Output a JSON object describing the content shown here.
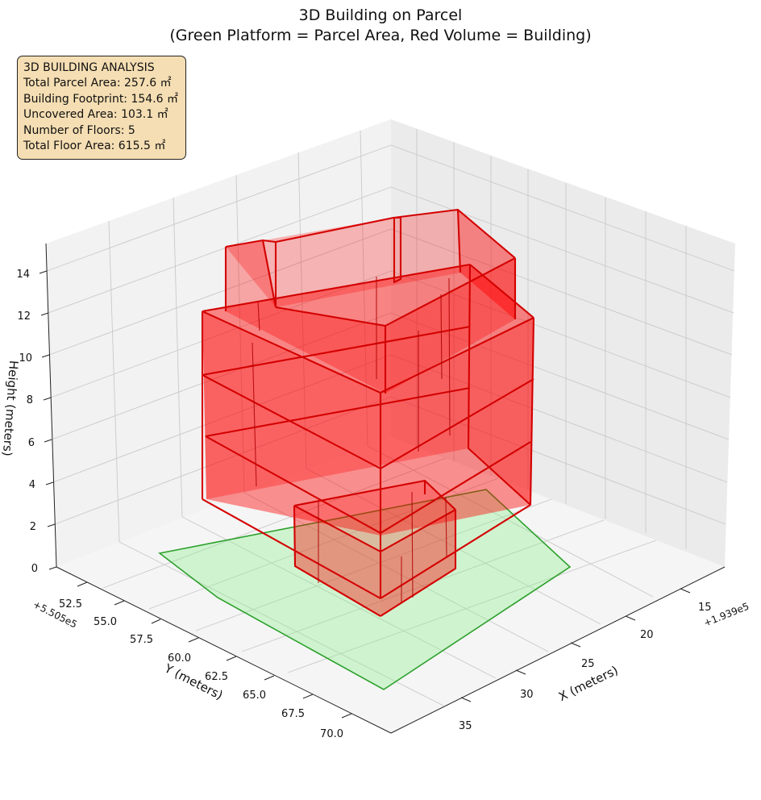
{
  "chart_data": {
    "type": "3d-polygon",
    "title": "3D Building on Parcel",
    "subtitle": "(Green Platform = Parcel Area, Red Volume = Building)",
    "xlabel": "X (meters)",
    "ylabel": "Y (meters)",
    "zlabel": "Height (meters)",
    "x_offset_label": "+1.939e5",
    "y_offset_label": "+5.505e5",
    "x_ticks": [
      "15",
      "20",
      "25",
      "30",
      "35"
    ],
    "y_ticks": [
      "52.5",
      "55.0",
      "57.5",
      "60.0",
      "62.5",
      "65.0",
      "67.5",
      "70.0"
    ],
    "z_ticks": [
      "0",
      "2",
      "4",
      "6",
      "8",
      "10",
      "12",
      "14"
    ],
    "grid": true,
    "parcel_color": "#90ee90",
    "parcel_edge_color": "#2ca02c",
    "building_color": "#ff0000",
    "building_edge_color": "#d40000",
    "info_panel": {
      "heading": "3D BUILDING ANALYSIS",
      "lines": [
        "Total Parcel Area: 257.6 ㎡",
        "Building Footprint: 154.6 ㎡",
        "Uncovered Area: 103.1 ㎡",
        "Number of Floors: 5",
        "Total Floor Area: 615.5 ㎡"
      ],
      "background_color": "#f5deb3"
    },
    "floors": 5,
    "parcel_area_m2": 257.6,
    "building_footprint_m2": 154.6,
    "uncovered_area_m2": 103.1,
    "total_floor_area_m2": 615.5
  }
}
